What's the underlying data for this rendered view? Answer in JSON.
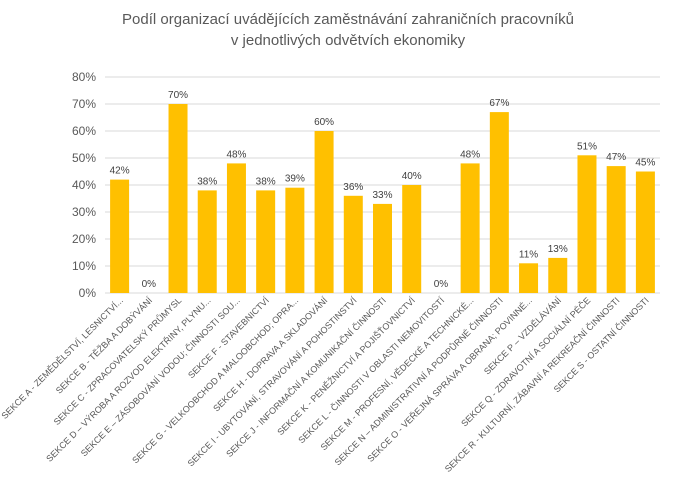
{
  "chart_data": {
    "type": "bar",
    "title": "Podíl organizací uvádějících zaměstnávání zahraničních pracovníků",
    "subtitle": "v jednotlivých odvětvích ekonomiky",
    "categories": [
      "SEKCE A - ZEMĚDĚLSTVÍ, LESNICTVÍ...",
      "SEKCE B - TĚŽBA A DOBÝVÁNÍ",
      "SEKCE C - ZPRACOVATELSKÝ PRŮMYSL",
      "SEKCE D – VÝROBA A ROZVOD ELEKTŘINY, PLYNU...",
      "SEKCE E – ZÁSOBOVÁNÍ VODOU; ČINNOSTI SOU...",
      "SEKCE F - STAVEBNICTVÍ",
      "SEKCE G - VELKOOBCHOD A MALOOBCHOD; OPRA...",
      "SEKCE H - DOPRAVA A SKLADOVÁNÍ",
      "SEKCE I - UBYTOVÁNÍ, STRAVOVÁNÍ A POHOSTINSTVÍ",
      "SEKCE J - INFORMAČNÍ A KOMUNIKAČNÍ ČINNOSTI",
      "SEKCE K - PENĚŽNICTVÍ A POJIŠŤOVNICTVÍ",
      "SEKCE L - ČINNOSTI V OBLASTI NEMOVITOSTÍ",
      "SEKCE M - PROFESNÍ, VĚDECKÉ A TECHNICKÉ...",
      "SEKCE N – ADMINISTRATIVNÍ A PODPŮRNÉ ČINNOSTI",
      "SEKCE O - VEŘEJNÁ SPRÁVA A OBRANA; POVINNÉ...",
      "SEKCE P – VZDĚLÁVÁNÍ",
      "SEKCE Q - ZDRAVOTNÍ A SOCIÁLNÍ PÉČE",
      "SEKCE R - KULTURNÍ, ZÁBAVNÍ A REKREAČNÍ ČINNOSTI",
      "SEKCE S - OSTATNÍ ČINNOSTI"
    ],
    "values": [
      42,
      0,
      70,
      38,
      48,
      38,
      39,
      60,
      36,
      33,
      40,
      0,
      48,
      67,
      11,
      13,
      51,
      47,
      45
    ],
    "data_labels": [
      "42%",
      "0%",
      "70%",
      "38%",
      "48%",
      "38%",
      "39%",
      "60%",
      "36%",
      "33%",
      "40%",
      "0%",
      "48%",
      "67%",
      "11%",
      "13%",
      "51%",
      "47%",
      "45%"
    ],
    "y_ticks": [
      "0%",
      "10%",
      "20%",
      "30%",
      "40%",
      "50%",
      "60%",
      "70%",
      "80%"
    ],
    "ylim": [
      0,
      80
    ],
    "xlabel": "",
    "ylabel": "",
    "grid": true,
    "legend": "none",
    "colors": {
      "bar": "#FFC000",
      "grid": "#D9D9D9",
      "text": "#595959",
      "title": "#595959"
    }
  }
}
